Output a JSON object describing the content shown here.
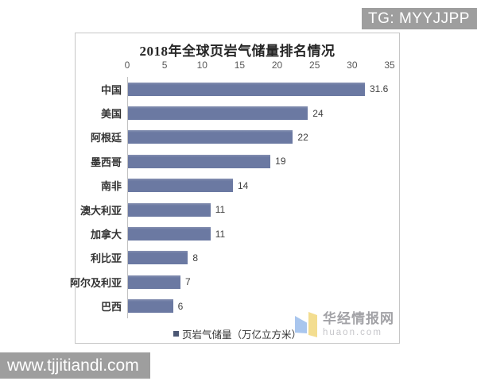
{
  "page": {
    "background": "#ffffff",
    "tg_badge": {
      "label": "TG: MYYJJPP",
      "bg": "#9e9e9e",
      "text_color": "#ffffff"
    },
    "bottom_watermark": {
      "label": "www.tjjitiandi.com",
      "bg": "#9e9e9e",
      "text_color": "#ffffff"
    }
  },
  "chart": {
    "border_color": "#c6c6c6",
    "bar_color": "#6b79a2",
    "legend_marker_color": "#4c5874"
  },
  "chart_data": {
    "type": "bar",
    "orientation": "horizontal",
    "title": "2018年全球页岩气储量排名情况",
    "categories": [
      "中国",
      "美国",
      "阿根廷",
      "墨西哥",
      "南非",
      "澳大利亚",
      "加拿大",
      "利比亚",
      "阿尔及利亚",
      "巴西"
    ],
    "values": [
      31.6,
      24,
      22,
      19,
      14,
      11,
      11,
      8,
      7,
      6
    ],
    "value_labels": [
      "31.6",
      "24",
      "22",
      "19",
      "14",
      "11",
      "11",
      "8",
      "7",
      "6"
    ],
    "xlim": [
      0,
      35
    ],
    "xticks": [
      0,
      5,
      10,
      15,
      20,
      25,
      30,
      35
    ],
    "xlabel": "",
    "ylabel": "",
    "grid": false,
    "legend": [
      "页岩气储量（万亿立方米）"
    ],
    "legend_position": "bottom"
  },
  "huaon_watermark": {
    "name": "华经情报网",
    "domain": "huaon.com",
    "logo_blue": "#a9c6ee",
    "logo_yellow": "#f3dd90"
  }
}
